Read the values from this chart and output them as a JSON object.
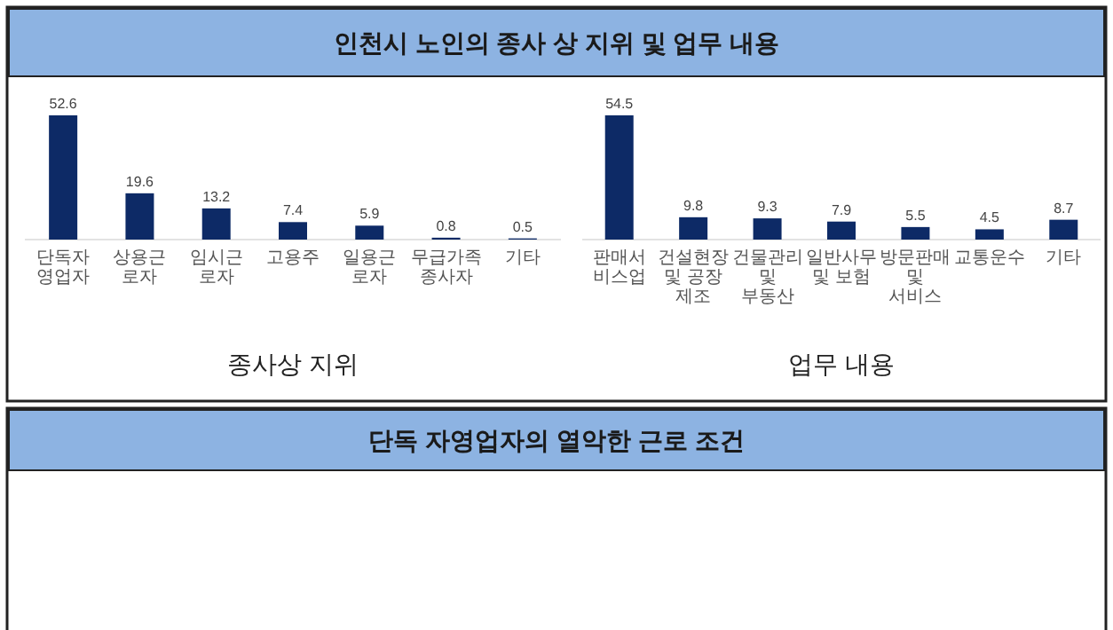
{
  "chart_data": [
    {
      "type": "other",
      "title": "인천시 노인의 종사 상 지위 및 업무 내용"
    },
    {
      "type": "bar",
      "xlabel": "종사상 지위",
      "data_labels": true,
      "color": "#0d2a66",
      "categories": [
        "단독자영업자",
        "상용근로자",
        "임시근로자",
        "고용주",
        "일용근로자",
        "무급가족종사자",
        "기타"
      ],
      "values": [
        52.6,
        19.6,
        13.2,
        7.4,
        5.9,
        0.8,
        0.5
      ]
    },
    {
      "type": "bar",
      "xlabel": "업무 내용",
      "data_labels": true,
      "color": "#0d2a66",
      "categories": [
        "판매서비스업",
        "건설현장 및 공장 제조",
        "건물관리 및 부동산",
        "일반사무 및 보험",
        "방문판매 및 서비스",
        "교통운수",
        "기타"
      ],
      "values": [
        54.5,
        9.8,
        9.3,
        7.9,
        5.5,
        4.5,
        8.7
      ]
    },
    {
      "type": "other",
      "title": "단독 자영업자의 열악한 근로 조건"
    }
  ]
}
